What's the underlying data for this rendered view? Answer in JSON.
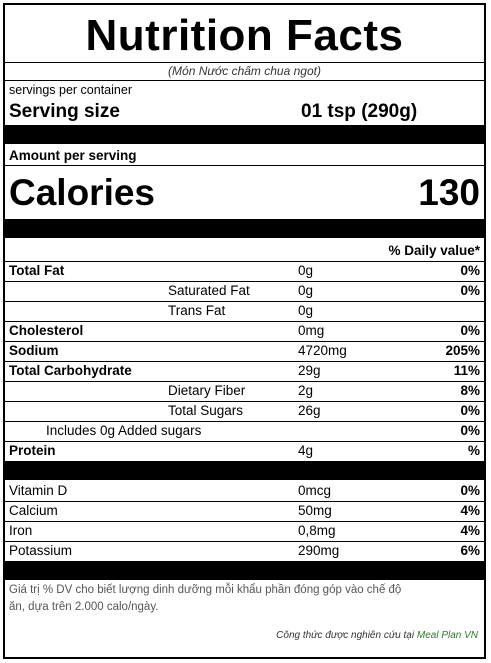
{
  "label": {
    "title": "Nutrition Facts",
    "subtitle": "(Món Nước chấm chua ngot)",
    "servings_per_container": "servings per container",
    "serving_size_label": "Serving size",
    "serving_size_value": "01 tsp  (290g)",
    "amount_per_serving": "Amount per serving",
    "calories_label": "Calories",
    "calories_value": "130",
    "daily_value_header": "% Daily value*",
    "nutrients": [
      {
        "name": "Total Fat",
        "amount": "0g",
        "dv": "0%"
      },
      {
        "name": "Saturated Fat",
        "amount": "0g",
        "dv": "0%"
      },
      {
        "name": "Trans Fat",
        "amount": "0g",
        "dv": ""
      },
      {
        "name": "Cholesterol",
        "amount": "0mg",
        "dv": "0%"
      },
      {
        "name": "Sodium",
        "amount": "4720mg",
        "dv": "205%"
      },
      {
        "name": "Total Carbohydrate",
        "amount": "29g",
        "dv": "11%"
      },
      {
        "name": "Dietary Fiber",
        "amount": "2g",
        "dv": "8%"
      },
      {
        "name": "Total Sugars",
        "amount": "26g",
        "dv": "0%"
      },
      {
        "name": "Includes 0g Added sugars",
        "amount": "",
        "dv": "0%"
      },
      {
        "name": "Protein",
        "amount": "4g",
        "dv": "%"
      }
    ],
    "vitamins": [
      {
        "name": "Vitamin D",
        "amount": "0mcg",
        "dv": "0%"
      },
      {
        "name": "Calcium",
        "amount": "50mg",
        "dv": "4%"
      },
      {
        "name": "Iron",
        "amount": "0,8mg",
        "dv": "4%"
      },
      {
        "name": "Potassium",
        "amount": "290mg",
        "dv": "6%"
      }
    ],
    "footnote_line1": "Giá trị % DV cho biết lượng dinh dưỡng mỗi khẩu phần đóng góp vào chế độ",
    "footnote_line2": "ăn, dựa trên 2.000 calo/ngày.",
    "credit_prefix": "Công thức được nghiên cứu tại ",
    "credit_brand": "Meal Plan VN"
  }
}
